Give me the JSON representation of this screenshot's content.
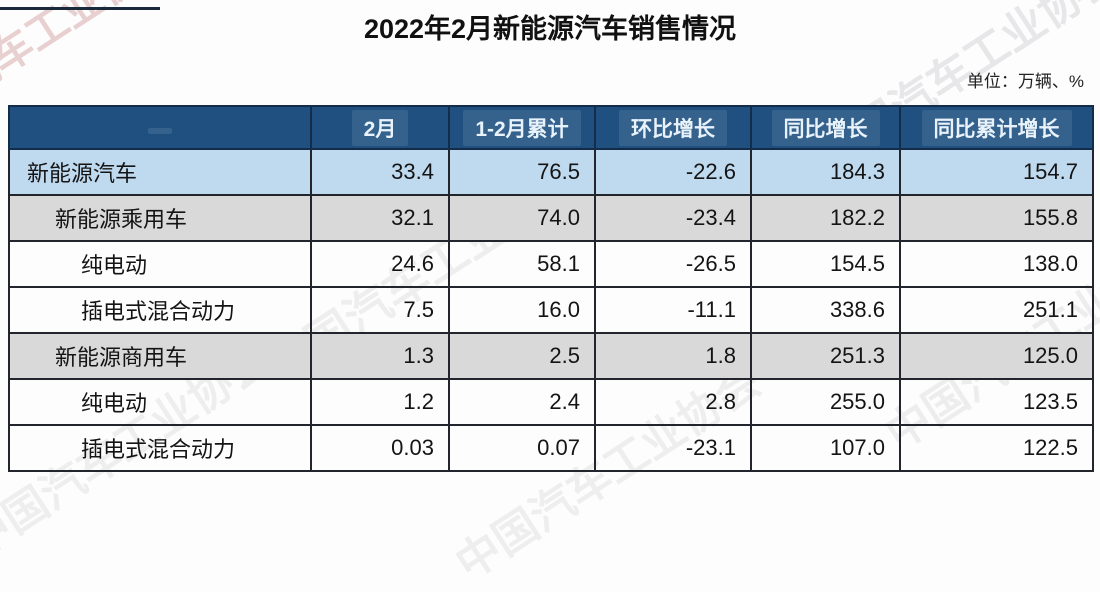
{
  "title": "2022年2月新能源汽车销售情况",
  "unit_label": "单位：万辆、%",
  "watermark": {
    "text": "中国汽车工业协会"
  },
  "colors": {
    "header_bg": "#1F5080",
    "header_text": "#E8F2FB",
    "row_blue": "#BFD9EF",
    "row_gray": "#D9D9D9",
    "row_white": "#FDFDFD",
    "border": "#23252C"
  },
  "table": {
    "columns": [
      "",
      "2月",
      "1-2月累计",
      "环比增长",
      "同比增长",
      "同比累计增长"
    ],
    "rows": [
      {
        "label": "新能源汽车",
        "indent": 1,
        "style": "blue",
        "values": [
          "33.4",
          "76.5",
          "-22.6",
          "184.3",
          "154.7"
        ]
      },
      {
        "label": "新能源乘用车",
        "indent": 2,
        "style": "gray",
        "values": [
          "32.1",
          "74.0",
          "-23.4",
          "182.2",
          "155.8"
        ]
      },
      {
        "label": "纯电动",
        "indent": 3,
        "style": "white",
        "values": [
          "24.6",
          "58.1",
          "-26.5",
          "154.5",
          "138.0"
        ]
      },
      {
        "label": "插电式混合动力",
        "indent": 3,
        "style": "white",
        "values": [
          "7.5",
          "16.0",
          "-11.1",
          "338.6",
          "251.1"
        ]
      },
      {
        "label": "新能源商用车",
        "indent": 2,
        "style": "gray",
        "values": [
          "1.3",
          "2.5",
          "1.8",
          "251.3",
          "125.0"
        ]
      },
      {
        "label": "纯电动",
        "indent": 3,
        "style": "white",
        "values": [
          "1.2",
          "2.4",
          "2.8",
          "255.0",
          "123.5"
        ]
      },
      {
        "label": "插电式混合动力",
        "indent": 3,
        "style": "white",
        "values": [
          "0.03",
          "0.07",
          "-23.1",
          "107.0",
          "122.5"
        ]
      }
    ]
  }
}
